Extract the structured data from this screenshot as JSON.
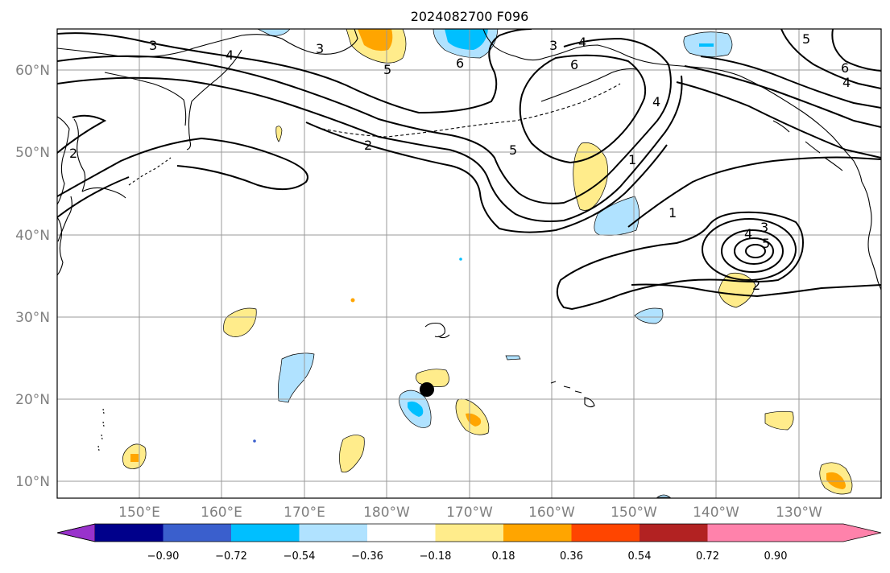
{
  "title": "2024082700 F096",
  "lat_labels": [
    "60°N",
    "50°N",
    "40°N",
    "30°N",
    "20°N",
    "10°N"
  ],
  "lon_labels": [
    "150°E",
    "160°E",
    "170°E",
    "180°W",
    "170°W",
    "160°W",
    "150°W",
    "140°W",
    "130°W"
  ],
  "colorbar": {
    "labels": [
      "−0.90",
      "−0.72",
      "−0.54",
      "−0.36",
      "−0.18",
      "0.18",
      "0.36",
      "0.54",
      "0.72",
      "0.90"
    ],
    "colors": [
      "#9932CC",
      "#00008B",
      "#3A5FCD",
      "#00BFFF",
      "#B0E2FF",
      "#FFFFFF",
      "#FFEC8B",
      "#FFA500",
      "#FF4500",
      "#B22222",
      "#FF82AB"
    ]
  },
  "contour_labels": {
    "l3a": "3",
    "l4a": "4",
    "l5a": "5",
    "l6a": "6",
    "l3b": "3",
    "l4b": "4",
    "l6b": "6",
    "l2a": "2",
    "l5b": "5",
    "l4c": "4",
    "l1a": "1",
    "l1b": "1",
    "l2b": "2",
    "l3c": "3",
    "l4d": "4",
    "l5c": "5",
    "l2c": "2",
    "l5d": "5",
    "l6c": "6",
    "l4e": "4"
  },
  "colors": {
    "yellow": "#FFEC8B",
    "orange": "#FFA500",
    "lightblue": "#B0E2FF",
    "blue": "#00BFFF",
    "marker": "#000000"
  }
}
